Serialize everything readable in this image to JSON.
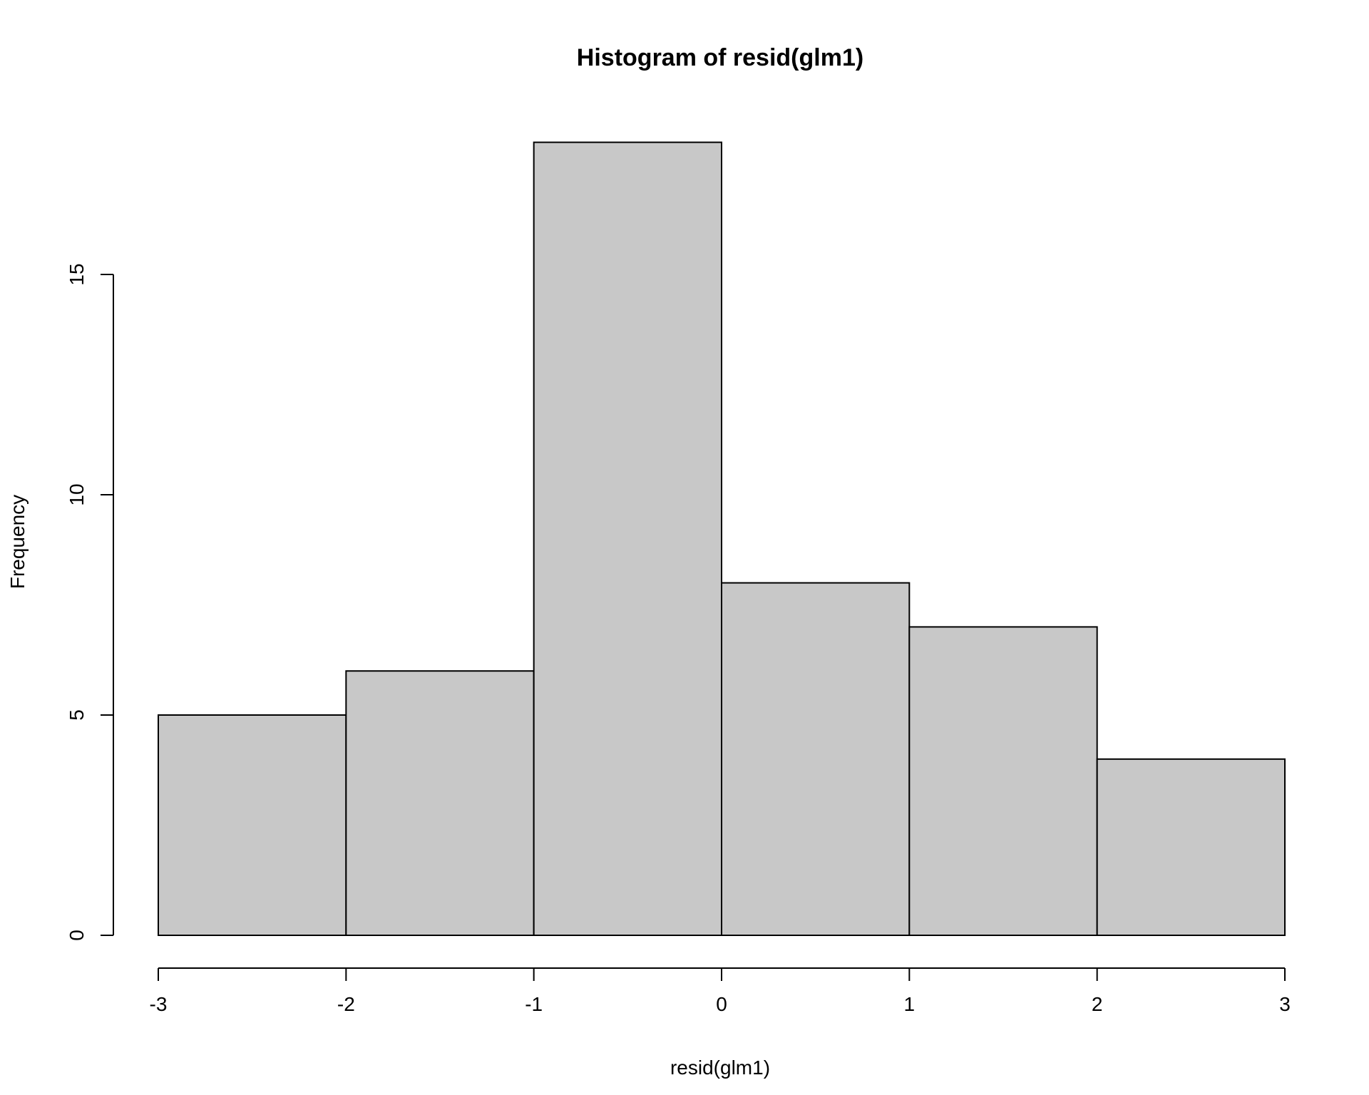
{
  "chart_data": {
    "type": "bar",
    "title": "Histogram of resid(glm1)",
    "xlabel": "resid(glm1)",
    "ylabel": "Frequency",
    "bins": [
      {
        "start": -3,
        "end": -2,
        "count": 5
      },
      {
        "start": -2,
        "end": -1,
        "count": 6
      },
      {
        "start": -1,
        "end": 0,
        "count": 18
      },
      {
        "start": 0,
        "end": 1,
        "count": 8
      },
      {
        "start": 1,
        "end": 2,
        "count": 7
      },
      {
        "start": 2,
        "end": 3,
        "count": 4
      }
    ],
    "xlim": [
      -3,
      3
    ],
    "ylim": [
      0,
      18
    ],
    "x_ticks": [
      -3,
      -2,
      -1,
      0,
      1,
      2,
      3
    ],
    "x_tick_labels": [
      "-3",
      "-2",
      "-1",
      "0",
      "1",
      "2",
      "3"
    ],
    "y_ticks": [
      0,
      5,
      10,
      15
    ],
    "y_tick_labels": [
      "0",
      "5",
      "10",
      "15"
    ],
    "grid": false,
    "colors": {
      "bar_fill": "#c8c8c8",
      "bar_stroke": "#000000"
    }
  }
}
